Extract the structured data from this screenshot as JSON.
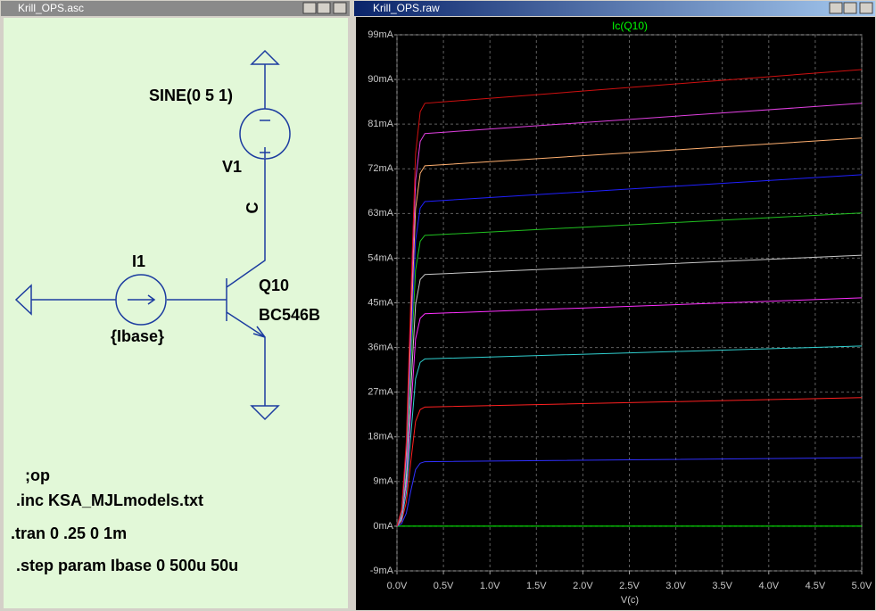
{
  "schematic_window": {
    "title": "Krill_OPS.asc",
    "labels": {
      "source": "SINE(0 5 1)",
      "source_name": "V1",
      "net": "C",
      "current_source": "I1",
      "current_value": "{Ibase}",
      "transistor": "Q10",
      "model": "BC546B"
    },
    "directives": [
      ";op",
      ".inc KSA_MJLmodels.txt",
      ".tran 0 .25 0 1m",
      ".step param Ibase 0 500u 50u"
    ]
  },
  "plot_window": {
    "title": "Krill_OPS.raw"
  },
  "chart_data": {
    "type": "line",
    "title": "Ic(Q10)",
    "x_label": "V(c)",
    "x": [
      0,
      0.05,
      0.1,
      0.15,
      0.2,
      0.25,
      0.3,
      5.0
    ],
    "series": [
      {
        "color": "#00ff00",
        "values": [
          0,
          0,
          0,
          0,
          0,
          0,
          0,
          0
        ]
      },
      {
        "color": "#3030ff",
        "values": [
          0,
          0.5,
          2.6,
          7.2,
          11.4,
          12.7,
          13.0,
          13.8
        ]
      },
      {
        "color": "#ff2020",
        "values": [
          0,
          1.0,
          4.8,
          13.2,
          21.1,
          23.5,
          24.0,
          25.9
        ]
      },
      {
        "color": "#30d0d0",
        "values": [
          0,
          1.3,
          6.7,
          18.5,
          29.7,
          33.0,
          33.7,
          36.3
        ]
      },
      {
        "color": "#ff30ff",
        "values": [
          0,
          1.7,
          8.6,
          23.5,
          37.7,
          41.9,
          42.8,
          46.0
        ]
      },
      {
        "color": "#c8c8c8",
        "values": [
          0,
          2.0,
          10.1,
          27.9,
          44.6,
          49.7,
          50.7,
          54.6
        ]
      },
      {
        "color": "#20c020",
        "values": [
          0,
          2.3,
          11.7,
          32.2,
          51.6,
          57.4,
          58.6,
          63.1
        ]
      },
      {
        "color": "#2020ff",
        "values": [
          0,
          2.6,
          13.1,
          36.0,
          57.6,
          64.1,
          65.4,
          70.8
        ]
      },
      {
        "color": "#ffb070",
        "values": [
          0,
          2.9,
          14.5,
          39.9,
          63.9,
          71.1,
          72.6,
          78.2
        ]
      },
      {
        "color": "#e040e0",
        "values": [
          0,
          3.2,
          15.8,
          43.5,
          69.6,
          77.5,
          79.1,
          85.2
        ]
      },
      {
        "color": "#d01010",
        "values": [
          0,
          3.4,
          17.0,
          46.9,
          75.0,
          83.5,
          85.2,
          92.0
        ]
      }
    ],
    "xlim": [
      0,
      5
    ],
    "ylim": [
      -9,
      99
    ],
    "xticks": [
      {
        "value": 0,
        "label": "0.0V"
      },
      {
        "value": 0.5,
        "label": "0.5V"
      },
      {
        "value": 1,
        "label": "1.0V"
      },
      {
        "value": 1.5,
        "label": "1.5V"
      },
      {
        "value": 2,
        "label": "2.0V"
      },
      {
        "value": 2.5,
        "label": "2.5V"
      },
      {
        "value": 3,
        "label": "3.0V"
      },
      {
        "value": 3.5,
        "label": "3.5V"
      },
      {
        "value": 4,
        "label": "4.0V"
      },
      {
        "value": 4.5,
        "label": "4.5V"
      },
      {
        "value": 5,
        "label": "5.0V"
      }
    ],
    "yticks": [
      {
        "value": -9,
        "label": "-9mA"
      },
      {
        "value": 0,
        "label": "0mA"
      },
      {
        "value": 9,
        "label": "9mA"
      },
      {
        "value": 18,
        "label": "18mA"
      },
      {
        "value": 27,
        "label": "27mA"
      },
      {
        "value": 36,
        "label": "36mA"
      },
      {
        "value": 45,
        "label": "45mA"
      },
      {
        "value": 54,
        "label": "54mA"
      },
      {
        "value": 63,
        "label": "63mA"
      },
      {
        "value": 72,
        "label": "72mA"
      },
      {
        "value": 81,
        "label": "81mA"
      },
      {
        "value": 90,
        "label": "90mA"
      },
      {
        "value": 99,
        "label": "99mA"
      }
    ],
    "grid": true
  }
}
